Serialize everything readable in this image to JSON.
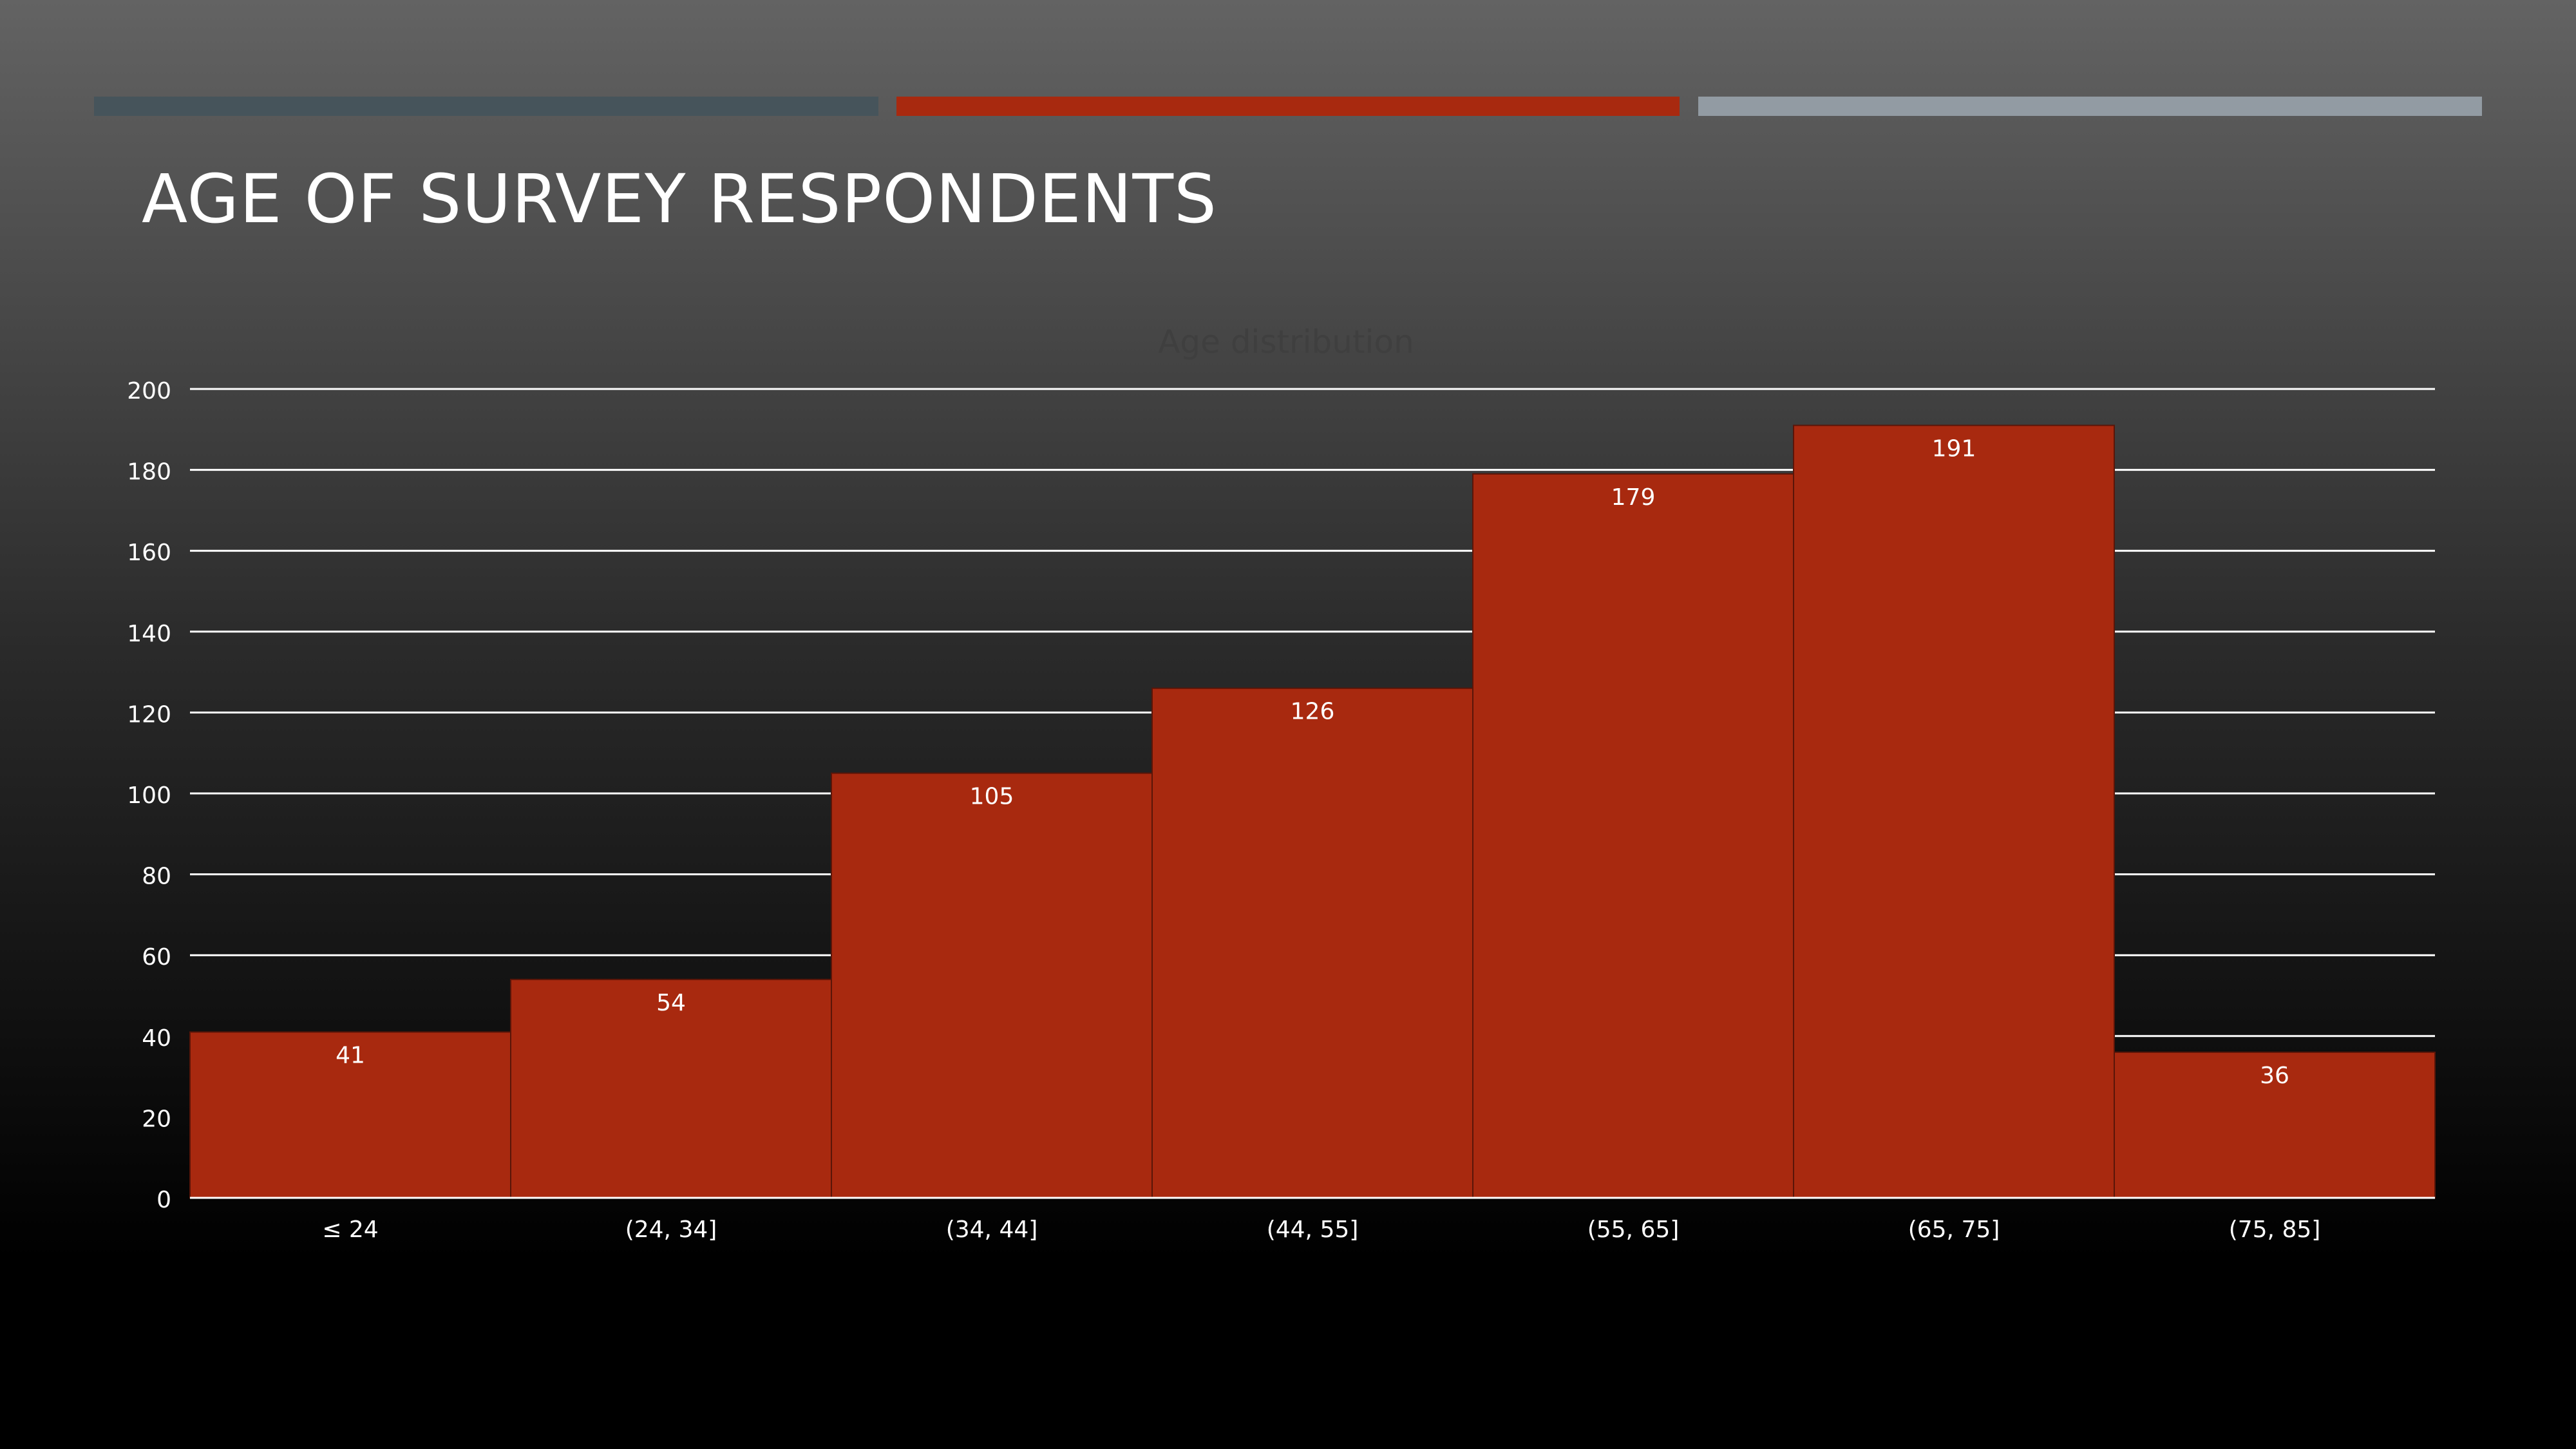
{
  "slide": {
    "title": "AGE OF SURVEY RESPONDENTS",
    "accent_colors": [
      "#46545b",
      "#a8290f",
      "#929ba3"
    ]
  },
  "chart_data": {
    "type": "bar",
    "title": "Age distribution",
    "categories": [
      "≤ 24",
      "(24, 34]",
      "(34, 44]",
      "(44, 55]",
      "(55, 65]",
      "(65, 75]",
      "(75, 85]"
    ],
    "values": [
      41,
      54,
      105,
      126,
      179,
      191,
      36
    ],
    "xlabel": "",
    "ylabel": "",
    "ylim": [
      0,
      200
    ],
    "yticks": [
      0,
      20,
      40,
      60,
      80,
      100,
      120,
      140,
      160,
      180,
      200
    ],
    "grid": true,
    "legend": "none",
    "data_labels": true,
    "bar_color": "#a8290f",
    "title_color": "#3f3f3f"
  }
}
